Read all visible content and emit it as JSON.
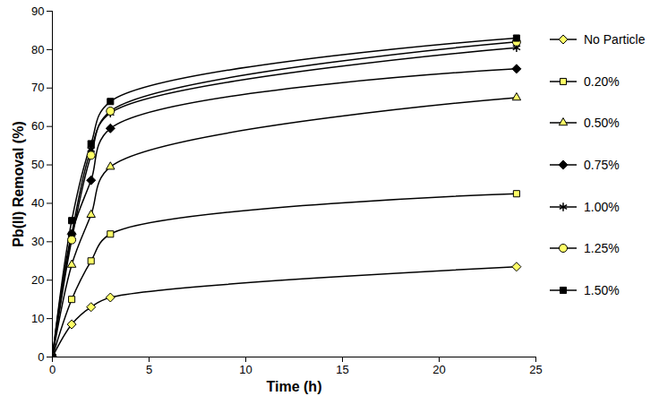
{
  "chart_data": {
    "type": "line",
    "x_label": "Time (h)",
    "y_label": "Pb(II) Removal (%)",
    "x": [
      0,
      1,
      2,
      3,
      24
    ],
    "series": [
      {
        "name": "No Particle",
        "color": "#ffff66",
        "marker": "diamond",
        "values": [
          0,
          8.5,
          13,
          15.5,
          23.5
        ]
      },
      {
        "name": "0.20%",
        "color": "#ffff66",
        "marker": "square",
        "values": [
          0,
          15,
          25,
          32,
          42.5
        ]
      },
      {
        "name": "0.50%",
        "color": "#ffff66",
        "marker": "triangle",
        "values": [
          0,
          24,
          37,
          49.5,
          67.5
        ]
      },
      {
        "name": "0.75%",
        "color": "#000000",
        "marker": "diamond",
        "values": [
          0,
          32,
          46,
          59.5,
          75
        ]
      },
      {
        "name": "1.00%",
        "color": "#000000",
        "marker": "asterisk",
        "values": [
          0,
          32,
          54,
          63.5,
          80.5
        ]
      },
      {
        "name": "1.25%",
        "color": "#ffff66",
        "marker": "circle",
        "values": [
          0,
          30.5,
          52.5,
          64,
          82
        ]
      },
      {
        "name": "1.50%",
        "color": "#000000",
        "marker": "square",
        "values": [
          0,
          35.5,
          55.5,
          66.5,
          83
        ]
      }
    ],
    "xlim": [
      0,
      25
    ],
    "xticks": [
      0,
      5,
      10,
      15,
      20,
      25
    ],
    "ylim": [
      0,
      90
    ],
    "yticks": [
      0,
      10,
      20,
      30,
      40,
      50,
      60,
      70,
      80,
      90
    ],
    "grid": false,
    "legend": "right",
    "line_style": "solid"
  }
}
